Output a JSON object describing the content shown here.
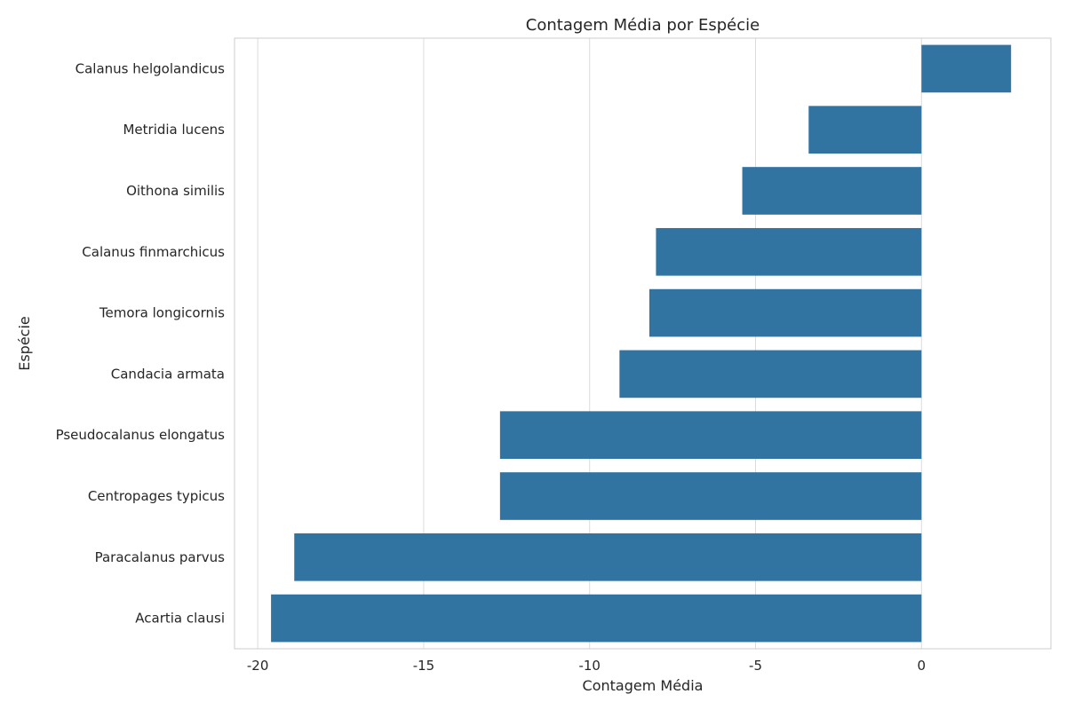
{
  "chart_data": {
    "type": "bar",
    "orientation": "horizontal",
    "title": "Contagem Média por Espécie",
    "xlabel": "Contagem Média",
    "ylabel": "Espécie",
    "categories": [
      "Calanus helgolandicus",
      "Metridia lucens",
      "Oithona similis",
      "Calanus finmarchicus",
      "Temora longicornis",
      "Candacia armata",
      "Pseudocalanus elongatus",
      "Centropages typicus",
      "Paracalanus parvus",
      "Acartia clausi"
    ],
    "values": [
      2.7,
      -3.4,
      -5.4,
      -8.0,
      -8.2,
      -9.1,
      -12.7,
      -12.7,
      -18.9,
      -19.6
    ],
    "xlim": [
      -20.7,
      3.9
    ],
    "xticks": [
      -20,
      -15,
      -10,
      -5,
      0
    ],
    "xtick_labels": [
      "-20",
      "-15",
      "-10",
      "-5",
      "0"
    ],
    "grid": "vertical",
    "bar_color": "#3274a1"
  }
}
